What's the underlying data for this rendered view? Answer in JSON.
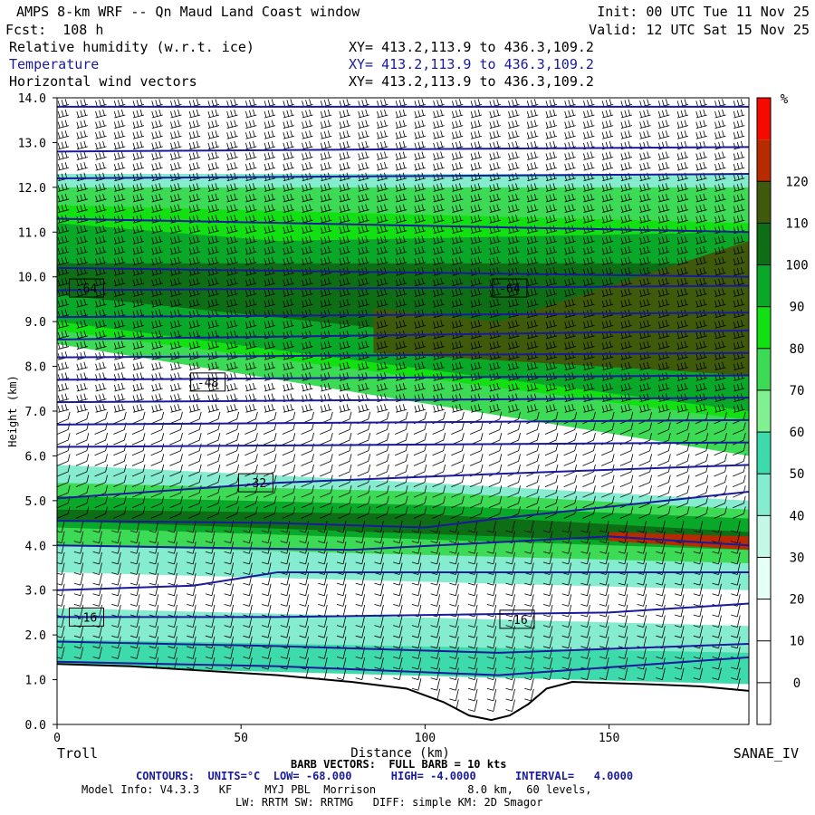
{
  "header": {
    "title": "AMPS 8-km WRF -- Qn Maud Land Coast window",
    "fcst": "Fcst:  108 h",
    "init": "Init: 00 UTC Tue 11 Nov 25",
    "valid": "Valid: 12 UTC Sat 15 Nov 25",
    "fields": [
      {
        "name": "Relative humidity (w.r.t. ice)",
        "xy": "XY= 413.2,113.9 to 436.3,109.2"
      },
      {
        "name": "Temperature",
        "xy": "XY= 413.2,113.9 to 436.3,109.2"
      },
      {
        "name": "Horizontal wind vectors",
        "xy": "XY= 413.2,113.9 to 436.3,109.2"
      }
    ]
  },
  "footer": {
    "left_station": "Troll",
    "right_station": "SANAE_IV",
    "barb": "BARB VECTORS:  FULL BARB = 10 kts",
    "contours": "CONTOURS:  UNITS=°C  LOW= -68.000      HIGH= -4.0000      INTERVAL=   4.0000",
    "model1": "Model Info: V4.3.3   KF     MYJ PBL  Morrison              8.0 km,  60 levels,",
    "model2": "LW: RRTM SW: RRTMG   DIFF: simple KM: 2D Smagor"
  },
  "colors": {
    "temp_contour": "#1a1a9c",
    "background": "#ffffff"
  },
  "chart_data": {
    "type": "heatmap",
    "title": "",
    "xlabel": "Distance (km)",
    "ylabel": "Height (km)",
    "xlim": [
      0,
      188
    ],
    "ylim": [
      0,
      14
    ],
    "x_ticks": [
      "0",
      "50",
      "100",
      "150"
    ],
    "y_ticks": [
      "0.0",
      "1.0",
      "2.0",
      "3.0",
      "4.0",
      "5.0",
      "6.0",
      "7.0",
      "8.0",
      "9.0",
      "10.0",
      "11.0",
      "12.0",
      "13.0",
      "14.0"
    ],
    "colorbar": {
      "unit": "%",
      "ticks": [
        "0",
        "10",
        "20",
        "30",
        "40",
        "50",
        "60",
        "70",
        "80",
        "90",
        "100",
        "110",
        "120"
      ],
      "bins": [
        {
          "from": -10,
          "to": 20,
          "color": "#ffffff"
        },
        {
          "from": 20,
          "to": 30,
          "color": "#e6fff7"
        },
        {
          "from": 30,
          "to": 40,
          "color": "#c3f7e6"
        },
        {
          "from": 40,
          "to": 50,
          "color": "#86ecd0"
        },
        {
          "from": 50,
          "to": 60,
          "color": "#3ddbab"
        },
        {
          "from": 60,
          "to": 70,
          "color": "#80f090"
        },
        {
          "from": 70,
          "to": 80,
          "color": "#3ddb55"
        },
        {
          "from": 80,
          "to": 90,
          "color": "#12e012"
        },
        {
          "from": 90,
          "to": 100,
          "color": "#0aa828"
        },
        {
          "from": 100,
          "to": 110,
          "color": "#0d6e16"
        },
        {
          "from": 110,
          "to": 120,
          "color": "#3f5a0b"
        },
        {
          "from": 120,
          "to": 130,
          "color": "#b82a00"
        },
        {
          "from": 130,
          "to": 140,
          "color": "#f50a00"
        }
      ]
    },
    "rh_bands": [
      {
        "top": [
          [
            0,
            12.3
          ],
          [
            188,
            12.3
          ]
        ],
        "bottom": [
          [
            0,
            11.9
          ],
          [
            188,
            11.9
          ]
        ],
        "value": 40
      },
      {
        "top": [
          [
            0,
            12.0
          ],
          [
            188,
            12.0
          ]
        ],
        "bottom": [
          [
            0,
            8.5
          ],
          [
            188,
            6.0
          ]
        ],
        "value": 70
      },
      {
        "top": [
          [
            0,
            11.6
          ],
          [
            188,
            11.2
          ]
        ],
        "bottom": [
          [
            0,
            8.8
          ],
          [
            188,
            6.8
          ]
        ],
        "value": 85
      },
      {
        "top": [
          [
            0,
            11.2
          ],
          [
            60,
            10.8
          ],
          [
            188,
            11.0
          ]
        ],
        "bottom": [
          [
            0,
            9.0
          ],
          [
            188,
            7.0
          ]
        ],
        "value": 95
      },
      {
        "top": [
          [
            0,
            10.3
          ],
          [
            188,
            10.3
          ]
        ],
        "bottom": [
          [
            0,
            9.6
          ],
          [
            188,
            8.0
          ]
        ],
        "value": 105
      },
      {
        "top": [
          [
            86,
            9.3
          ],
          [
            120,
            9.0
          ],
          [
            188,
            10.8
          ]
        ],
        "bottom": [
          [
            86,
            8.3
          ],
          [
            188,
            7.8
          ]
        ],
        "value": 112
      },
      {
        "top": [
          [
            0,
            5.8
          ],
          [
            100,
            5.4
          ],
          [
            188,
            5.0
          ]
        ],
        "bottom": [
          [
            0,
            3.4
          ],
          [
            188,
            3.0
          ]
        ],
        "value": 45
      },
      {
        "top": [
          [
            0,
            5.4
          ],
          [
            100,
            5.2
          ],
          [
            188,
            4.8
          ]
        ],
        "bottom": [
          [
            0,
            4.0
          ],
          [
            188,
            3.6
          ]
        ],
        "value": 75
      },
      {
        "top": [
          [
            0,
            5.1
          ],
          [
            100,
            4.9
          ],
          [
            188,
            4.6
          ]
        ],
        "bottom": [
          [
            0,
            4.4
          ],
          [
            188,
            3.9
          ]
        ],
        "value": 95
      },
      {
        "top": [
          [
            0,
            4.8
          ],
          [
            100,
            4.7
          ],
          [
            188,
            4.3
          ]
        ],
        "bottom": [
          [
            0,
            4.55
          ],
          [
            188,
            4.0
          ]
        ],
        "value": 105
      },
      {
        "top": [
          [
            150,
            4.3
          ],
          [
            188,
            4.2
          ]
        ],
        "bottom": [
          [
            150,
            4.1
          ],
          [
            188,
            3.9
          ]
        ],
        "value": 125
      },
      {
        "top": [
          [
            0,
            2.6
          ],
          [
            188,
            2.2
          ]
        ],
        "bottom": [
          [
            0,
            1.4
          ],
          [
            188,
            1.0
          ]
        ],
        "value": 45
      },
      {
        "top": [
          [
            0,
            1.9
          ],
          [
            188,
            1.6
          ]
        ],
        "bottom": [
          [
            0,
            1.3
          ],
          [
            188,
            0.9
          ]
        ],
        "value": 55
      }
    ],
    "terrain": [
      [
        0,
        1.35
      ],
      [
        20,
        1.3
      ],
      [
        40,
        1.2
      ],
      [
        60,
        1.1
      ],
      [
        80,
        0.95
      ],
      [
        95,
        0.8
      ],
      [
        105,
        0.5
      ],
      [
        112,
        0.2
      ],
      [
        118,
        0.1
      ],
      [
        123,
        0.2
      ],
      [
        128,
        0.45
      ],
      [
        133,
        0.8
      ],
      [
        140,
        0.95
      ],
      [
        160,
        0.9
      ],
      [
        175,
        0.85
      ],
      [
        188,
        0.75
      ]
    ],
    "isotherms": [
      {
        "x": [
          0,
          188
        ],
        "y": [
          13.8,
          13.8
        ]
      },
      {
        "x": [
          0,
          188
        ],
        "y": [
          12.8,
          12.9
        ]
      },
      {
        "x": [
          0,
          188
        ],
        "y": [
          12.2,
          12.3
        ]
      },
      {
        "x": [
          0,
          188
        ],
        "y": [
          11.3,
          11.0
        ]
      },
      {
        "x": [
          0,
          188
        ],
        "y": [
          10.2,
          10.0
        ]
      },
      {
        "x": [
          0,
          188
        ],
        "y": [
          9.7,
          9.8
        ]
      },
      {
        "x": [
          0,
          188
        ],
        "y": [
          9.1,
          9.2
        ]
      },
      {
        "x": [
          0,
          188
        ],
        "y": [
          8.6,
          8.8
        ]
      },
      {
        "x": [
          0,
          188
        ],
        "y": [
          8.2,
          8.3
        ]
      },
      {
        "x": [
          0,
          188
        ],
        "y": [
          7.7,
          7.8
        ]
      },
      {
        "x": [
          0,
          188
        ],
        "y": [
          7.2,
          7.3
        ]
      },
      {
        "x": [
          0,
          188
        ],
        "y": [
          6.7,
          6.8
        ]
      },
      {
        "x": [
          0,
          188
        ],
        "y": [
          6.2,
          6.3
        ]
      },
      {
        "x": [
          0,
          60,
          120,
          188
        ],
        "y": [
          5.05,
          5.4,
          5.6,
          5.8
        ]
      },
      {
        "x": [
          0,
          60,
          100,
          120,
          188
        ],
        "y": [
          4.55,
          4.5,
          4.4,
          4.6,
          5.2
        ]
      },
      {
        "x": [
          0,
          80,
          150,
          188
        ],
        "y": [
          4.0,
          3.9,
          4.2,
          4.0
        ]
      },
      {
        "x": [
          0,
          37,
          60,
          188
        ],
        "y": [
          3.0,
          3.1,
          3.4,
          3.4
        ]
      },
      {
        "x": [
          0,
          60,
          150,
          188
        ],
        "y": [
          2.4,
          2.4,
          2.5,
          2.7
        ]
      },
      {
        "x": [
          0,
          60,
          120,
          188
        ],
        "y": [
          1.85,
          1.75,
          1.6,
          1.8
        ]
      },
      {
        "x": [
          0,
          60,
          120,
          188
        ],
        "y": [
          1.4,
          1.3,
          1.1,
          1.5
        ]
      }
    ],
    "isotherm_labels": [
      {
        "text": "-64",
        "x": 8,
        "y": 9.75
      },
      {
        "text": "-64",
        "x": 123,
        "y": 9.75
      },
      {
        "text": "-48",
        "x": 41,
        "y": 7.65
      },
      {
        "text": "-32",
        "x": 54,
        "y": 5.4
      },
      {
        "text": "-16",
        "x": 8,
        "y": 2.4
      },
      {
        "text": "-16",
        "x": 125,
        "y": 2.35
      }
    ]
  }
}
